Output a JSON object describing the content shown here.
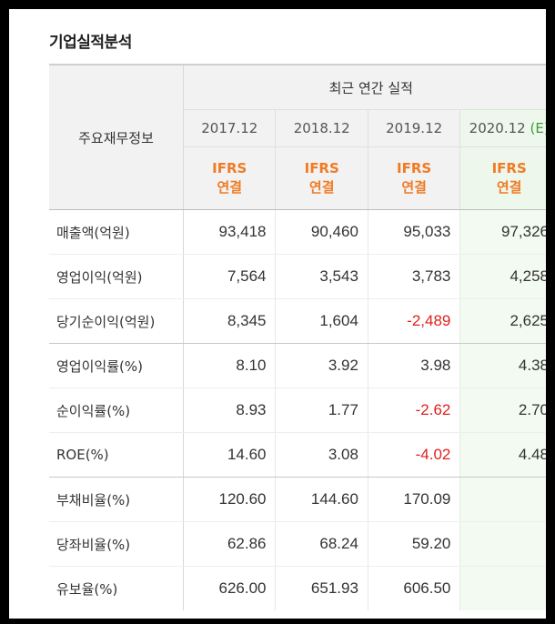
{
  "section_title": "기업실적분석",
  "table": {
    "corner_label": "주요재무정보",
    "group_label": "최근 연간 실적",
    "periods": [
      {
        "label": "2017.12",
        "est": ""
      },
      {
        "label": "2018.12",
        "est": ""
      },
      {
        "label": "2019.12",
        "est": ""
      },
      {
        "label": "2020.12",
        "est": "(E)"
      }
    ],
    "standard_line1": "IFRS",
    "standard_line2": "연결",
    "rows": [
      {
        "label": "매출액(억원)",
        "values": [
          "93,418",
          "90,460",
          "95,033",
          "97,326"
        ],
        "negative": [
          false,
          false,
          false,
          false
        ]
      },
      {
        "label": "영업이익(억원)",
        "values": [
          "7,564",
          "3,543",
          "3,783",
          "4,258"
        ],
        "negative": [
          false,
          false,
          false,
          false
        ]
      },
      {
        "label": "당기순이익(억원)",
        "values": [
          "8,345",
          "1,604",
          "-2,489",
          "2,625"
        ],
        "negative": [
          false,
          false,
          true,
          false
        ]
      },
      {
        "label": "영업이익률(%)",
        "values": [
          "8.10",
          "3.92",
          "3.98",
          "4.38"
        ],
        "negative": [
          false,
          false,
          false,
          false
        ]
      },
      {
        "label": "순이익률(%)",
        "values": [
          "8.93",
          "1.77",
          "-2.62",
          "2.70"
        ],
        "negative": [
          false,
          false,
          true,
          false
        ]
      },
      {
        "label": "ROE(%)",
        "values": [
          "14.60",
          "3.08",
          "-4.02",
          "4.48"
        ],
        "negative": [
          false,
          false,
          true,
          false
        ]
      },
      {
        "label": "부채비율(%)",
        "values": [
          "120.60",
          "144.60",
          "170.09",
          ""
        ],
        "negative": [
          false,
          false,
          false,
          false
        ]
      },
      {
        "label": "당좌비율(%)",
        "values": [
          "62.86",
          "68.24",
          "59.20",
          ""
        ],
        "negative": [
          false,
          false,
          false,
          false
        ]
      },
      {
        "label": "유보율(%)",
        "values": [
          "626.00",
          "651.93",
          "606.50",
          ""
        ],
        "negative": [
          false,
          false,
          false,
          false
        ]
      }
    ]
  },
  "colors": {
    "negative": "#e02020",
    "ifrs": "#f07b24",
    "estimate_label": "#3a9d3a",
    "estimate_bg": "#f3faf1"
  }
}
